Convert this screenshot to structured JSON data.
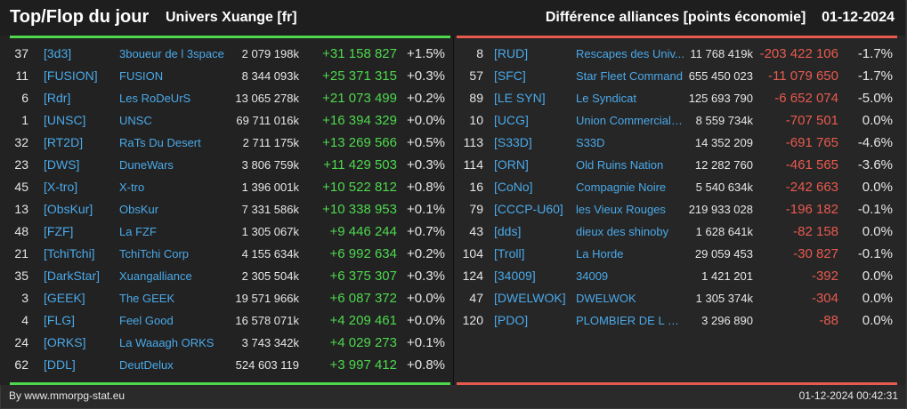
{
  "header": {
    "title": "Top/Flop du jour",
    "universe": "Univers Xuange [fr]",
    "subtitle": "Différence alliances [points économie]    01-12-2024"
  },
  "colors": {
    "positive": "#4ed84e",
    "negative": "#e85a4f",
    "link": "#4aa9e9",
    "top_bar": "#4ed84e",
    "flop_bar": "#e85a4f"
  },
  "top": [
    {
      "rank": "37",
      "tag": "[3d3]",
      "name": "3boueur de l 3space",
      "score": "2 079 198k",
      "diff": "+31 158 827",
      "pct": "+1.5%"
    },
    {
      "rank": "11",
      "tag": "[FUSION]",
      "name": "FUSION",
      "score": "8 344 093k",
      "diff": "+25 371 315",
      "pct": "+0.3%"
    },
    {
      "rank": "6",
      "tag": "[Rdr]",
      "name": "Les RoDeUrS",
      "score": "13 065 278k",
      "diff": "+21 073 499",
      "pct": "+0.2%"
    },
    {
      "rank": "1",
      "tag": "[UNSC]",
      "name": "UNSC",
      "score": "69 711 016k",
      "diff": "+16 394 329",
      "pct": "+0.0%"
    },
    {
      "rank": "32",
      "tag": "[RT2D]",
      "name": "RaTs Du Desert",
      "score": "2 711 175k",
      "diff": "+13 269 566",
      "pct": "+0.5%"
    },
    {
      "rank": "23",
      "tag": "[DWS]",
      "name": "DuneWars",
      "score": "3 806 759k",
      "diff": "+11 429 503",
      "pct": "+0.3%"
    },
    {
      "rank": "45",
      "tag": "[X-tro]",
      "name": "X-tro",
      "score": "1 396 001k",
      "diff": "+10 522 812",
      "pct": "+0.8%"
    },
    {
      "rank": "13",
      "tag": "[ObsKur]",
      "name": "ObsKur",
      "score": "7 331 586k",
      "diff": "+10 338 953",
      "pct": "+0.1%"
    },
    {
      "rank": "48",
      "tag": "[FZF]",
      "name": "La FZF",
      "score": "1 305 067k",
      "diff": "+9 446 244",
      "pct": "+0.7%"
    },
    {
      "rank": "21",
      "tag": "[TchiTchi]",
      "name": "TchiTchi Corp",
      "score": "4 155 634k",
      "diff": "+6 992 634",
      "pct": "+0.2%"
    },
    {
      "rank": "35",
      "tag": "[DarkStar]",
      "name": "Xuangalliance",
      "score": "2 305 504k",
      "diff": "+6 375 307",
      "pct": "+0.3%"
    },
    {
      "rank": "3",
      "tag": "[GEEK]",
      "name": "The GEEK",
      "score": "19 571 966k",
      "diff": "+6 087 372",
      "pct": "+0.0%"
    },
    {
      "rank": "4",
      "tag": "[FLG]",
      "name": "Feel Good",
      "score": "16 578 071k",
      "diff": "+4 209 461",
      "pct": "+0.0%"
    },
    {
      "rank": "24",
      "tag": "[ORKS]",
      "name": "La Waaagh ORKS",
      "score": "3 743 342k",
      "diff": "+4 029 273",
      "pct": "+0.1%"
    },
    {
      "rank": "62",
      "tag": "[DDL]",
      "name": "DeutDelux",
      "score": "524 603 119",
      "diff": "+3 997 412",
      "pct": "+0.8%"
    }
  ],
  "flop": [
    {
      "rank": "8",
      "tag": "[RUD]",
      "name": "Rescapes des Univ...",
      "score": "11 768 419k",
      "diff": "-203 422 106",
      "pct": "-1.7%"
    },
    {
      "rank": "57",
      "tag": "[SFC]",
      "name": "Star Fleet Command",
      "score": "655 450 023",
      "diff": "-11 079 650",
      "pct": "-1.7%"
    },
    {
      "rank": "89",
      "tag": "[LE SYN]",
      "name": "Le Syndicat",
      "score": "125 693 790",
      "diff": "-6 652 074",
      "pct": "-5.0%"
    },
    {
      "rank": "10",
      "tag": "[UCG]",
      "name": "Union Commerciale...",
      "score": "8 559 734k",
      "diff": "-707 501",
      "pct": "0.0%"
    },
    {
      "rank": "113",
      "tag": "[S33D]",
      "name": "S33D",
      "score": "14 352 209",
      "diff": "-691 765",
      "pct": "-4.6%"
    },
    {
      "rank": "114",
      "tag": "[ORN]",
      "name": "Old Ruins Nation",
      "score": "12 282 760",
      "diff": "-461 565",
      "pct": "-3.6%"
    },
    {
      "rank": "16",
      "tag": "[CoNo]",
      "name": "Compagnie Noire",
      "score": "5 540 634k",
      "diff": "-242 663",
      "pct": "0.0%"
    },
    {
      "rank": "79",
      "tag": "[CCCP-U60]",
      "name": "les Vieux Rouges",
      "score": "219 933 028",
      "diff": "-196 182",
      "pct": "-0.1%"
    },
    {
      "rank": "43",
      "tag": "[dds]",
      "name": "dieux des shinoby",
      "score": "1 628 641k",
      "diff": "-82 158",
      "pct": "0.0%"
    },
    {
      "rank": "104",
      "tag": "[Troll]",
      "name": "La Horde",
      "score": "29 059 453",
      "diff": "-30 827",
      "pct": "-0.1%"
    },
    {
      "rank": "124",
      "tag": "[34009]",
      "name": "34009",
      "score": "1 421 201",
      "diff": "-392",
      "pct": "0.0%"
    },
    {
      "rank": "47",
      "tag": "[DWELWOK]",
      "name": "DWELWOK",
      "score": "1 305 374k",
      "diff": "-304",
      "pct": "0.0%"
    },
    {
      "rank": "120",
      "tag": "[PDO]",
      "name": "PLOMBIER DE L O...",
      "score": "3 296 890",
      "diff": "-88",
      "pct": "0.0%"
    }
  ],
  "footer": {
    "credit": "By www.mmorpg-stat.eu",
    "timestamp": "01-12-2024 00:42:31"
  }
}
